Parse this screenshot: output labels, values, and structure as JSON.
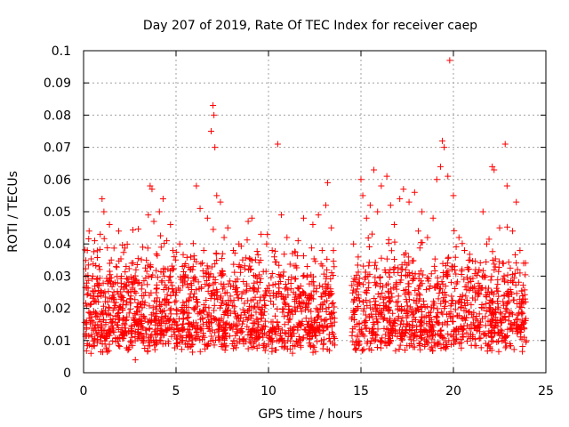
{
  "chart_data": {
    "type": "scatter",
    "title": "Day 207 of 2019, Rate Of TEC Index for receiver caep",
    "xlabel": "GPS time / hours",
    "ylabel": "ROTI / TECUs",
    "xlim": [
      0,
      25
    ],
    "ylim": [
      0,
      0.1
    ],
    "xticks": [
      0,
      5,
      10,
      15,
      20,
      25
    ],
    "xtick_labels": [
      "0",
      "5",
      "10",
      "15",
      "20",
      "25"
    ],
    "yticks": [
      0,
      0.01,
      0.02,
      0.03,
      0.04,
      0.05,
      0.06,
      0.07,
      0.08,
      0.09,
      0.1
    ],
    "ytick_labels": [
      "0",
      "0.01",
      "0.02",
      "0.03",
      "0.04",
      "0.05",
      "0.06",
      "0.07",
      "0.08",
      "0.09",
      "0.1"
    ],
    "grid": true,
    "marker": "+",
    "color": "#ff0000",
    "data_gap_hours": [
      13.6,
      14.5
    ],
    "series": [
      {
        "name": "ROTI",
        "points": [
          [
            0.1,
            0.012
          ],
          [
            0.2,
            0.038
          ],
          [
            0.3,
            0.044
          ],
          [
            0.4,
            0.006
          ],
          [
            0.5,
            0.03
          ],
          [
            0.6,
            0.041
          ],
          [
            0.8,
            0.022
          ],
          [
            0.9,
            0.043
          ],
          [
            1.0,
            0.054
          ],
          [
            1.1,
            0.05
          ],
          [
            1.2,
            0.015
          ],
          [
            1.4,
            0.046
          ],
          [
            1.5,
            0.035
          ],
          [
            1.7,
            0.028
          ],
          [
            1.9,
            0.044
          ],
          [
            2.1,
            0.02
          ],
          [
            2.3,
            0.033
          ],
          [
            2.4,
            0.007
          ],
          [
            2.6,
            0.034
          ],
          [
            2.8,
            0.004
          ],
          [
            3.0,
            0.028
          ],
          [
            3.2,
            0.039
          ],
          [
            3.5,
            0.049
          ],
          [
            3.6,
            0.058
          ],
          [
            3.7,
            0.057
          ],
          [
            3.8,
            0.047
          ],
          [
            4.1,
            0.05
          ],
          [
            4.3,
            0.054
          ],
          [
            4.5,
            0.041
          ],
          [
            4.7,
            0.046
          ],
          [
            4.9,
            0.036
          ],
          [
            5.2,
            0.04
          ],
          [
            5.4,
            0.03
          ],
          [
            5.6,
            0.009
          ],
          [
            5.9,
            0.032
          ],
          [
            6.1,
            0.058
          ],
          [
            6.3,
            0.051
          ],
          [
            6.5,
            0.038
          ],
          [
            6.7,
            0.048
          ],
          [
            6.9,
            0.075
          ],
          [
            7.0,
            0.083
          ],
          [
            7.05,
            0.08
          ],
          [
            7.1,
            0.07
          ],
          [
            7.2,
            0.055
          ],
          [
            7.4,
            0.053
          ],
          [
            7.6,
            0.042
          ],
          [
            7.8,
            0.045
          ],
          [
            8.1,
            0.038
          ],
          [
            8.4,
            0.04
          ],
          [
            8.6,
            0.035
          ],
          [
            8.9,
            0.047
          ],
          [
            9.1,
            0.048
          ],
          [
            9.3,
            0.03
          ],
          [
            9.6,
            0.043
          ],
          [
            9.9,
            0.04
          ],
          [
            10.2,
            0.038
          ],
          [
            10.5,
            0.071
          ],
          [
            10.7,
            0.049
          ],
          [
            11.0,
            0.042
          ],
          [
            11.3,
            0.037
          ],
          [
            11.6,
            0.041
          ],
          [
            11.9,
            0.048
          ],
          [
            12.1,
            0.033
          ],
          [
            12.4,
            0.046
          ],
          [
            12.7,
            0.049
          ],
          [
            12.9,
            0.038
          ],
          [
            13.1,
            0.052
          ],
          [
            13.2,
            0.059
          ],
          [
            13.4,
            0.045
          ],
          [
            13.5,
            0.012
          ],
          [
            14.6,
            0.04
          ],
          [
            14.8,
            0.026
          ],
          [
            15.0,
            0.06
          ],
          [
            15.1,
            0.055
          ],
          [
            15.3,
            0.048
          ],
          [
            15.5,
            0.052
          ],
          [
            15.7,
            0.063
          ],
          [
            15.9,
            0.05
          ],
          [
            16.1,
            0.058
          ],
          [
            16.4,
            0.061
          ],
          [
            16.6,
            0.052
          ],
          [
            16.8,
            0.046
          ],
          [
            17.1,
            0.054
          ],
          [
            17.3,
            0.057
          ],
          [
            17.6,
            0.053
          ],
          [
            17.9,
            0.056
          ],
          [
            18.1,
            0.044
          ],
          [
            18.3,
            0.05
          ],
          [
            18.6,
            0.042
          ],
          [
            18.9,
            0.048
          ],
          [
            19.1,
            0.06
          ],
          [
            19.3,
            0.064
          ],
          [
            19.4,
            0.072
          ],
          [
            19.5,
            0.07
          ],
          [
            19.7,
            0.061
          ],
          [
            19.8,
            0.097
          ],
          [
            20.0,
            0.055
          ],
          [
            20.3,
            0.042
          ],
          [
            20.6,
            0.038
          ],
          [
            20.9,
            0.035
          ],
          [
            21.2,
            0.032
          ],
          [
            21.6,
            0.05
          ],
          [
            21.8,
            0.04
          ],
          [
            22.1,
            0.064
          ],
          [
            22.2,
            0.063
          ],
          [
            22.5,
            0.045
          ],
          [
            22.8,
            0.071
          ],
          [
            22.9,
            0.058
          ],
          [
            23.2,
            0.044
          ],
          [
            23.4,
            0.053
          ],
          [
            23.6,
            0.038
          ],
          [
            23.8,
            0.034
          ],
          [
            23.9,
            0.022
          ]
        ]
      }
    ]
  }
}
